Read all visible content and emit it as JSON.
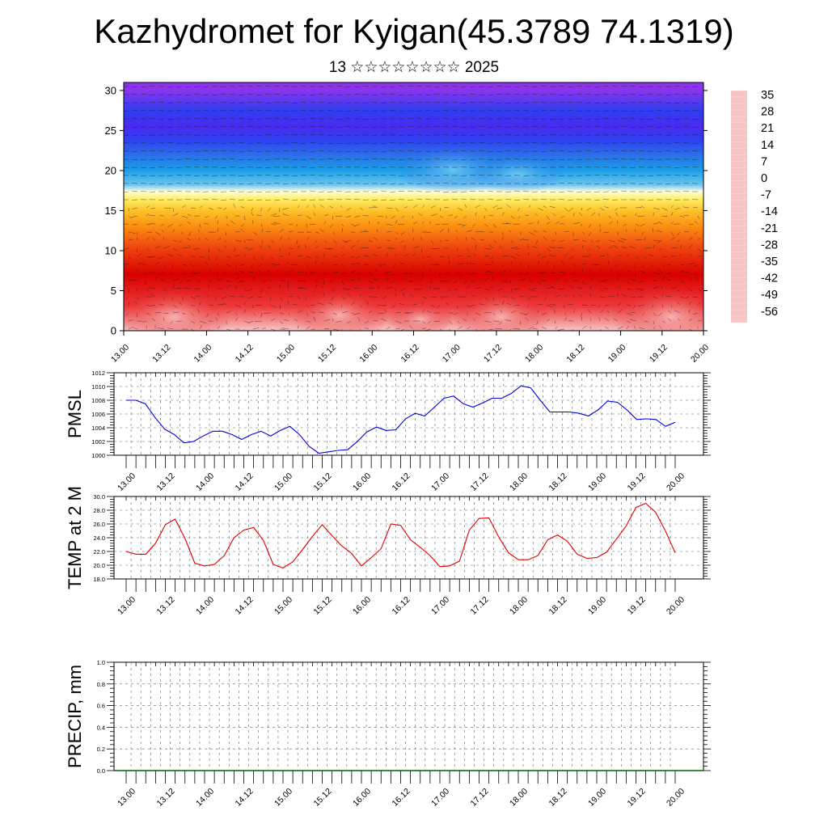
{
  "header": {
    "title": "Kazhydromet for Kyigan(45.3789 74.1319)",
    "subtitle": "13 ☆☆☆☆☆☆☆☆ 2025"
  },
  "time_ticks": [
    "13.00",
    "13.12",
    "14.00",
    "14.12",
    "15.00",
    "15.12",
    "16.00",
    "16.12",
    "17.00",
    "17.12",
    "18.00",
    "18.12",
    "19.00",
    "19.12",
    "20.00"
  ],
  "chart_data": [
    {
      "type": "heatmap",
      "name": "cross-section",
      "x_tick_labels": [
        "13.00",
        "13.12",
        "14.00",
        "14.12",
        "15.00",
        "15.12",
        "16.00",
        "16.12",
        "17.00",
        "17.12",
        "18.00",
        "18.12",
        "19.00",
        "19.12",
        "20.00"
      ],
      "y_tick_labels": [
        "0",
        "5",
        "10",
        "15",
        "20",
        "25",
        "30"
      ],
      "ylim": [
        0,
        31
      ],
      "colorbar": {
        "labels": [
          "35",
          "28",
          "21",
          "14",
          "7",
          "0",
          "-7",
          "-14",
          "-21",
          "-28",
          "-35",
          "-42",
          "-49",
          "-56"
        ],
        "stops": [
          {
            "v": 35,
            "color": "#f6c6c6"
          },
          {
            "v": 28,
            "color": "#ee3a3a"
          },
          {
            "v": 21,
            "color": "#d90000"
          },
          {
            "v": 14,
            "color": "#f04810"
          },
          {
            "v": 7,
            "color": "#fb8e10"
          },
          {
            "v": 0,
            "color": "#fdc22a"
          },
          {
            "v": -7,
            "color": "#fff06a"
          },
          {
            "v": -12,
            "color": "#fffde0"
          },
          {
            "v": -14,
            "color": "#d6eef8"
          },
          {
            "v": -21,
            "color": "#6ec6f0"
          },
          {
            "v": -28,
            "color": "#1a9fe8"
          },
          {
            "v": -35,
            "color": "#2c6ee8"
          },
          {
            "v": -42,
            "color": "#2e3ef0"
          },
          {
            "v": -49,
            "color": "#4b2bf0"
          },
          {
            "v": -56,
            "color": "#8a35ec"
          }
        ]
      },
      "grid": false
    },
    {
      "type": "line",
      "name": "pmsl",
      "ylabel": "PMSL",
      "x_tick_labels": [
        "13.00",
        "13.12",
        "14.00",
        "14.12",
        "15.00",
        "15.12",
        "16.00",
        "16.12",
        "17.00",
        "17.12",
        "18.00",
        "18.12",
        "19.00",
        "19.12",
        "20.00"
      ],
      "y_tick_labels": [
        "1000",
        "1002",
        "1004",
        "1006",
        "1008",
        "1010",
        "1012"
      ],
      "ylim": [
        1000,
        1012
      ],
      "color": "#0000dd",
      "grid": true,
      "values": [
        1008.0,
        1008.0,
        1007.5,
        1005.5,
        1003.8,
        1003.0,
        1001.8,
        1002.0,
        1002.8,
        1003.5,
        1003.5,
        1003.0,
        1002.3,
        1003.0,
        1003.5,
        1002.8,
        1003.6,
        1004.2,
        1003.0,
        1001.3,
        1000.3,
        1000.5,
        1000.7,
        1000.8,
        1002.0,
        1003.4,
        1004.1,
        1003.6,
        1003.7,
        1005.3,
        1006.1,
        1005.7,
        1007.0,
        1008.3,
        1008.6,
        1007.5,
        1007.0,
        1007.6,
        1008.3,
        1008.3,
        1009.0,
        1010.1,
        1009.8,
        1008.0,
        1006.3,
        1006.3,
        1006.3,
        1006.1,
        1005.7,
        1006.6,
        1007.9,
        1007.7,
        1006.6,
        1005.2,
        1005.3,
        1005.2,
        1004.2,
        1004.8
      ]
    },
    {
      "type": "line",
      "name": "temp2m",
      "ylabel": "TEMP at 2 M",
      "x_tick_labels": [
        "13.00",
        "13.12",
        "14.00",
        "14.12",
        "15.00",
        "15.12",
        "16.00",
        "16.12",
        "17.00",
        "17.12",
        "18.00",
        "18.12",
        "19.00",
        "19.12",
        "20.00"
      ],
      "y_tick_labels": [
        "18.0",
        "20.0",
        "22.0",
        "24.0",
        "26.0",
        "28.0",
        "30.0"
      ],
      "ylim": [
        18,
        30
      ],
      "color": "#dd0000",
      "grid": true,
      "values": [
        22.0,
        21.6,
        21.6,
        23.2,
        25.9,
        26.7,
        23.9,
        20.3,
        19.9,
        20.1,
        21.4,
        24.0,
        25.1,
        25.5,
        23.6,
        20.1,
        19.6,
        20.5,
        22.3,
        24.2,
        25.9,
        24.3,
        22.8,
        21.7,
        19.9,
        21.1,
        22.4,
        26.0,
        25.8,
        23.7,
        22.6,
        21.4,
        19.8,
        19.9,
        20.6,
        25.1,
        26.8,
        26.9,
        24.1,
        21.8,
        20.8,
        20.8,
        21.4,
        23.7,
        24.4,
        23.5,
        21.6,
        21.0,
        21.1,
        21.9,
        23.8,
        25.7,
        28.4,
        29.0,
        27.7,
        25.0,
        21.8
      ]
    },
    {
      "type": "bar",
      "name": "precip",
      "ylabel": "PRECIP, mm",
      "x_tick_labels": [
        "13.00",
        "13.12",
        "14.00",
        "14.12",
        "15.00",
        "15.12",
        "16.00",
        "16.12",
        "17.00",
        "17.12",
        "18.00",
        "18.12",
        "19.00",
        "19.12",
        "20.00"
      ],
      "y_tick_labels": [
        "0.0",
        "0.2",
        "0.4",
        "0.6",
        "0.8",
        "1.0"
      ],
      "ylim": [
        0,
        1
      ],
      "color": "#006400",
      "grid": true,
      "values": [
        0,
        0,
        0,
        0,
        0,
        0,
        0,
        0,
        0,
        0,
        0,
        0,
        0,
        0,
        0,
        0,
        0,
        0,
        0,
        0,
        0,
        0,
        0,
        0,
        0,
        0,
        0,
        0,
        0,
        0,
        0,
        0,
        0,
        0,
        0,
        0,
        0,
        0,
        0,
        0,
        0,
        0,
        0,
        0,
        0,
        0,
        0,
        0,
        0,
        0,
        0,
        0,
        0,
        0,
        0,
        0,
        0
      ]
    }
  ]
}
